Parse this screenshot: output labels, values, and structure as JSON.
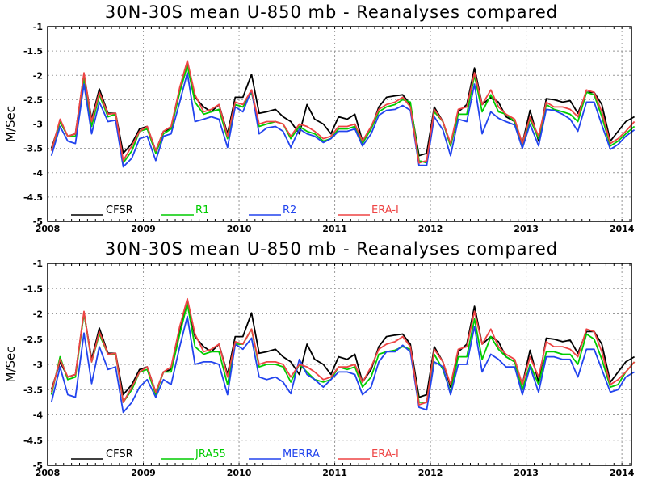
{
  "chart_data": [
    {
      "type": "line",
      "title": "30N-30S mean U-850 mb - Reanalyses compared",
      "ylabel": "M/Sec",
      "xlabel": "",
      "xlim": [
        2008.0,
        2014.1
      ],
      "ylim": [
        -5,
        -1
      ],
      "yticks": [
        "-1",
        "-1.5",
        "-2",
        "-2.5",
        "-3",
        "-3.5",
        "-4",
        "-4.5",
        "-5"
      ],
      "xticks": [
        "2008",
        "2009",
        "2010",
        "2011",
        "2012",
        "2013",
        "2014"
      ],
      "grid": true,
      "legend_position": "bottom",
      "x": [
        2008.04,
        2008.13,
        2008.21,
        2008.29,
        2008.38,
        2008.46,
        2008.54,
        2008.63,
        2008.71,
        2008.79,
        2008.88,
        2008.96,
        2009.04,
        2009.13,
        2009.21,
        2009.29,
        2009.38,
        2009.46,
        2009.54,
        2009.63,
        2009.71,
        2009.79,
        2009.88,
        2009.96,
        2010.04,
        2010.13,
        2010.21,
        2010.29,
        2010.38,
        2010.46,
        2010.54,
        2010.63,
        2010.71,
        2010.79,
        2010.88,
        2010.96,
        2011.04,
        2011.13,
        2011.21,
        2011.29,
        2011.38,
        2011.46,
        2011.54,
        2011.63,
        2011.71,
        2011.79,
        2011.88,
        2011.96,
        2012.04,
        2012.13,
        2012.21,
        2012.29,
        2012.38,
        2012.46,
        2012.54,
        2012.63,
        2012.71,
        2012.79,
        2012.88,
        2012.96,
        2013.04,
        2013.13,
        2013.21,
        2013.29,
        2013.38,
        2013.46,
        2013.54,
        2013.63,
        2013.71,
        2013.79,
        2013.88,
        2013.96,
        2014.04,
        2014.13
      ],
      "series": [
        {
          "name": "CFSR",
          "color": "#000000",
          "values": [
            -3.5,
            -2.95,
            -3.25,
            -3.2,
            -1.98,
            -2.9,
            -2.28,
            -2.78,
            -2.78,
            -3.6,
            -3.4,
            -3.1,
            -3.05,
            -3.55,
            -3.15,
            -3.1,
            -2.3,
            -1.75,
            -2.45,
            -2.65,
            -2.75,
            -2.6,
            -3.2,
            -2.45,
            -2.45,
            -1.98,
            -2.78,
            -2.75,
            -2.7,
            -2.85,
            -2.95,
            -3.2,
            -2.6,
            -2.9,
            -3.0,
            -3.2,
            -2.85,
            -2.9,
            -2.8,
            -3.35,
            -3.1,
            -2.65,
            -2.45,
            -2.42,
            -2.4,
            -2.6,
            -3.65,
            -3.6,
            -2.65,
            -2.95,
            -3.45,
            -2.75,
            -2.6,
            -1.85,
            -2.6,
            -2.45,
            -2.55,
            -2.85,
            -2.95,
            -3.4,
            -2.72,
            -3.35,
            -2.48,
            -2.5,
            -2.55,
            -2.52,
            -2.78,
            -2.35,
            -2.35,
            -2.6,
            -3.35,
            -3.15,
            -2.95,
            -2.85
          ]
        },
        {
          "name": "R1",
          "color": "#00cc00",
          "values": [
            -3.55,
            -2.95,
            -3.25,
            -3.25,
            -2.05,
            -3.05,
            -2.4,
            -2.85,
            -2.8,
            -3.8,
            -3.55,
            -3.15,
            -3.1,
            -3.6,
            -3.2,
            -3.1,
            -2.35,
            -1.8,
            -2.55,
            -2.8,
            -2.75,
            -2.7,
            -3.3,
            -2.6,
            -2.65,
            -2.35,
            -3.05,
            -3.0,
            -2.95,
            -3.0,
            -3.3,
            -3.05,
            -3.15,
            -3.2,
            -3.35,
            -3.3,
            -3.1,
            -3.1,
            -3.05,
            -3.4,
            -3.1,
            -2.75,
            -2.65,
            -2.6,
            -2.5,
            -2.55,
            -3.75,
            -3.8,
            -2.75,
            -2.95,
            -3.45,
            -2.8,
            -2.8,
            -2.0,
            -2.75,
            -2.4,
            -2.75,
            -2.8,
            -2.95,
            -3.45,
            -2.9,
            -3.3,
            -2.6,
            -2.7,
            -2.75,
            -2.8,
            -2.95,
            -2.35,
            -2.4,
            -2.85,
            -3.45,
            -3.35,
            -3.2,
            -3.05
          ]
        },
        {
          "name": "R2",
          "color": "#2244ee",
          "values": [
            -3.65,
            -3.05,
            -3.35,
            -3.4,
            -2.18,
            -3.2,
            -2.55,
            -2.95,
            -2.92,
            -3.88,
            -3.7,
            -3.3,
            -3.25,
            -3.75,
            -3.25,
            -3.2,
            -2.55,
            -1.95,
            -2.95,
            -2.9,
            -2.85,
            -2.9,
            -3.48,
            -2.65,
            -2.75,
            -2.3,
            -3.2,
            -3.08,
            -3.05,
            -3.15,
            -3.48,
            -3.1,
            -3.2,
            -3.25,
            -3.38,
            -3.3,
            -3.15,
            -3.15,
            -3.1,
            -3.45,
            -3.2,
            -2.82,
            -2.72,
            -2.7,
            -2.62,
            -2.72,
            -3.85,
            -3.85,
            -2.85,
            -3.12,
            -3.65,
            -2.9,
            -2.95,
            -2.18,
            -3.2,
            -2.75,
            -2.88,
            -2.95,
            -3.02,
            -3.5,
            -3.0,
            -3.45,
            -2.7,
            -2.72,
            -2.8,
            -2.9,
            -3.15,
            -2.55,
            -2.55,
            -3.02,
            -3.52,
            -3.42,
            -3.25,
            -3.12
          ]
        },
        {
          "name": "ERA-I",
          "color": "#ee4444",
          "values": [
            -3.55,
            -2.9,
            -3.25,
            -3.2,
            -1.95,
            -2.95,
            -2.35,
            -2.8,
            -2.78,
            -3.75,
            -3.45,
            -3.15,
            -3.05,
            -3.55,
            -3.15,
            -3.05,
            -2.25,
            -1.7,
            -2.4,
            -2.75,
            -2.7,
            -2.6,
            -3.25,
            -2.55,
            -2.6,
            -2.3,
            -3.0,
            -2.95,
            -2.95,
            -3.0,
            -3.25,
            -3.0,
            -3.05,
            -3.15,
            -3.3,
            -3.25,
            -3.05,
            -3.05,
            -3.0,
            -3.35,
            -3.05,
            -2.7,
            -2.6,
            -2.55,
            -2.45,
            -2.65,
            -3.8,
            -3.75,
            -2.7,
            -2.95,
            -3.4,
            -2.7,
            -2.65,
            -1.95,
            -2.6,
            -2.3,
            -2.65,
            -2.8,
            -2.9,
            -3.4,
            -2.85,
            -3.25,
            -2.55,
            -2.65,
            -2.65,
            -2.7,
            -2.85,
            -2.3,
            -2.35,
            -2.75,
            -3.4,
            -3.3,
            -3.15,
            -2.95
          ]
        }
      ]
    },
    {
      "type": "line",
      "title": "30N-30S mean U-850 mb - Reanalyses compared",
      "ylabel": "M/Sec",
      "xlabel": "",
      "xlim": [
        2008.0,
        2014.1
      ],
      "ylim": [
        -5,
        -1
      ],
      "yticks": [
        "-1",
        "-1.5",
        "-2",
        "-2.5",
        "-3",
        "-3.5",
        "-4",
        "-4.5",
        "-5"
      ],
      "xticks": [
        "2008",
        "2009",
        "2010",
        "2011",
        "2012",
        "2013",
        "2014"
      ],
      "grid": true,
      "legend_position": "bottom",
      "x": [
        2008.04,
        2008.13,
        2008.21,
        2008.29,
        2008.38,
        2008.46,
        2008.54,
        2008.63,
        2008.71,
        2008.79,
        2008.88,
        2008.96,
        2009.04,
        2009.13,
        2009.21,
        2009.29,
        2009.38,
        2009.46,
        2009.54,
        2009.63,
        2009.71,
        2009.79,
        2009.88,
        2009.96,
        2010.04,
        2010.13,
        2010.21,
        2010.29,
        2010.38,
        2010.46,
        2010.54,
        2010.63,
        2010.71,
        2010.79,
        2010.88,
        2010.96,
        2011.04,
        2011.13,
        2011.21,
        2011.29,
        2011.38,
        2011.46,
        2011.54,
        2011.63,
        2011.71,
        2011.79,
        2011.88,
        2011.96,
        2012.04,
        2012.13,
        2012.21,
        2012.29,
        2012.38,
        2012.46,
        2012.54,
        2012.63,
        2012.71,
        2012.79,
        2012.88,
        2012.96,
        2013.04,
        2013.13,
        2013.21,
        2013.29,
        2013.38,
        2013.46,
        2013.54,
        2013.63,
        2013.71,
        2013.79,
        2013.88,
        2013.96,
        2014.04,
        2014.13
      ],
      "series": [
        {
          "name": "CFSR",
          "color": "#000000",
          "values": [
            -3.5,
            -2.95,
            -3.25,
            -3.2,
            -1.98,
            -2.9,
            -2.28,
            -2.78,
            -2.78,
            -3.6,
            -3.4,
            -3.1,
            -3.05,
            -3.55,
            -3.15,
            -3.1,
            -2.3,
            -1.75,
            -2.45,
            -2.65,
            -2.75,
            -2.6,
            -3.2,
            -2.45,
            -2.45,
            -1.98,
            -2.78,
            -2.75,
            -2.7,
            -2.85,
            -2.95,
            -3.2,
            -2.6,
            -2.9,
            -3.0,
            -3.2,
            -2.85,
            -2.9,
            -2.8,
            -3.35,
            -3.1,
            -2.65,
            -2.45,
            -2.42,
            -2.4,
            -2.6,
            -3.65,
            -3.6,
            -2.65,
            -2.95,
            -3.45,
            -2.75,
            -2.6,
            -1.85,
            -2.6,
            -2.45,
            -2.55,
            -2.85,
            -2.95,
            -3.4,
            -2.72,
            -3.35,
            -2.48,
            -2.5,
            -2.55,
            -2.52,
            -2.78,
            -2.35,
            -2.35,
            -2.6,
            -3.35,
            -3.15,
            -2.95,
            -2.85
          ]
        },
        {
          "name": "JRA55",
          "color": "#00cc00",
          "values": [
            -3.6,
            -2.85,
            -3.3,
            -3.25,
            -1.98,
            -2.95,
            -2.4,
            -2.8,
            -2.8,
            -3.75,
            -3.5,
            -3.15,
            -3.1,
            -3.6,
            -3.15,
            -3.15,
            -2.4,
            -1.8,
            -2.65,
            -2.8,
            -2.75,
            -2.75,
            -3.4,
            -2.6,
            -2.6,
            -2.3,
            -3.05,
            -3.0,
            -3.0,
            -3.05,
            -3.35,
            -3.0,
            -3.15,
            -3.3,
            -3.35,
            -3.3,
            -3.05,
            -3.1,
            -3.05,
            -3.45,
            -3.25,
            -2.8,
            -2.75,
            -2.72,
            -2.65,
            -2.7,
            -3.75,
            -3.75,
            -2.8,
            -3.1,
            -3.55,
            -2.85,
            -2.85,
            -2.1,
            -2.9,
            -2.45,
            -2.7,
            -2.85,
            -2.95,
            -3.5,
            -3.0,
            -3.4,
            -2.75,
            -2.75,
            -2.8,
            -2.8,
            -3.0,
            -2.4,
            -2.5,
            -2.9,
            -3.45,
            -3.4,
            -3.15,
            -2.95
          ]
        },
        {
          "name": "MERRA",
          "color": "#2244ee",
          "values": [
            -3.75,
            -3.05,
            -3.6,
            -3.65,
            -2.38,
            -3.38,
            -2.65,
            -3.1,
            -3.05,
            -3.95,
            -3.75,
            -3.45,
            -3.3,
            -3.65,
            -3.3,
            -3.4,
            -2.65,
            -2.05,
            -3.0,
            -2.95,
            -2.95,
            -3.0,
            -3.6,
            -2.6,
            -2.7,
            -2.48,
            -3.25,
            -3.3,
            -3.25,
            -3.35,
            -3.58,
            -2.9,
            -3.2,
            -3.3,
            -3.45,
            -3.3,
            -3.15,
            -3.15,
            -3.2,
            -3.6,
            -3.45,
            -2.95,
            -2.75,
            -2.75,
            -2.62,
            -2.75,
            -3.85,
            -3.9,
            -2.95,
            -3.05,
            -3.6,
            -3.0,
            -3.0,
            -2.25,
            -3.15,
            -2.8,
            -2.9,
            -3.05,
            -3.05,
            -3.6,
            -3.05,
            -3.55,
            -2.85,
            -2.85,
            -2.9,
            -2.9,
            -3.25,
            -2.7,
            -2.7,
            -3.1,
            -3.55,
            -3.5,
            -3.25,
            -3.15
          ]
        },
        {
          "name": "ERA-I",
          "color": "#ee4444",
          "values": [
            -3.55,
            -2.9,
            -3.25,
            -3.2,
            -1.95,
            -2.95,
            -2.35,
            -2.8,
            -2.78,
            -3.75,
            -3.45,
            -3.15,
            -3.05,
            -3.55,
            -3.15,
            -3.05,
            -2.25,
            -1.7,
            -2.4,
            -2.75,
            -2.7,
            -2.6,
            -3.25,
            -2.55,
            -2.6,
            -2.3,
            -3.0,
            -2.95,
            -2.95,
            -3.0,
            -3.25,
            -3.0,
            -3.05,
            -3.15,
            -3.3,
            -3.25,
            -3.05,
            -3.05,
            -3.0,
            -3.35,
            -3.05,
            -2.7,
            -2.6,
            -2.55,
            -2.45,
            -2.65,
            -3.8,
            -3.75,
            -2.7,
            -2.95,
            -3.4,
            -2.7,
            -2.65,
            -1.95,
            -2.6,
            -2.3,
            -2.65,
            -2.8,
            -2.9,
            -3.4,
            -2.85,
            -3.25,
            -2.55,
            -2.65,
            -2.65,
            -2.7,
            -2.85,
            -2.3,
            -2.35,
            -2.75,
            -3.4,
            -3.3,
            -3.15,
            -2.95
          ]
        }
      ]
    }
  ]
}
